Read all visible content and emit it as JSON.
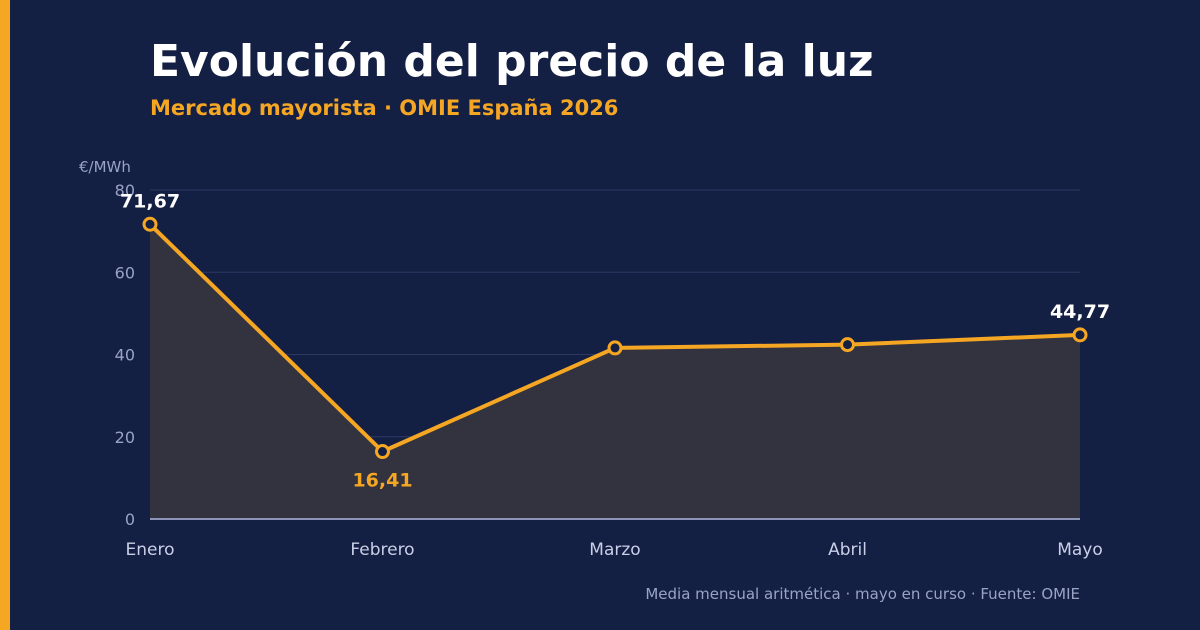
{
  "header": {
    "title": "Evolución del precio de la luz",
    "subtitle": "Mercado mayorista · OMIE España 2026"
  },
  "footnote": "Media mensual aritmética · mayo en curso · Fuente: OMIE",
  "colors": {
    "background": "#141f44",
    "accent": "#f5a623",
    "label_white": "#ffffff"
  },
  "chart_data": {
    "type": "area",
    "title": "Evolución del precio de la luz",
    "subtitle": "Mercado mayorista · OMIE España 2026",
    "xlabel": "",
    "ylabel": "€/MWh",
    "categories": [
      "Enero",
      "Febrero",
      "Marzo",
      "Abril",
      "Mayo"
    ],
    "values": [
      71.67,
      16.41,
      41.6,
      42.4,
      44.77
    ],
    "ylim": [
      0,
      80
    ],
    "yticks": [
      0,
      20,
      40,
      60,
      80
    ],
    "grid": true,
    "legend": "none",
    "data_labels": [
      {
        "index": 0,
        "text": "71,67",
        "color": "#ffffff",
        "position": "above"
      },
      {
        "index": 1,
        "text": "16,41",
        "color": "#f5a623",
        "position": "below"
      },
      {
        "index": 4,
        "text": "44,77",
        "color": "#ffffff",
        "position": "above"
      }
    ]
  }
}
